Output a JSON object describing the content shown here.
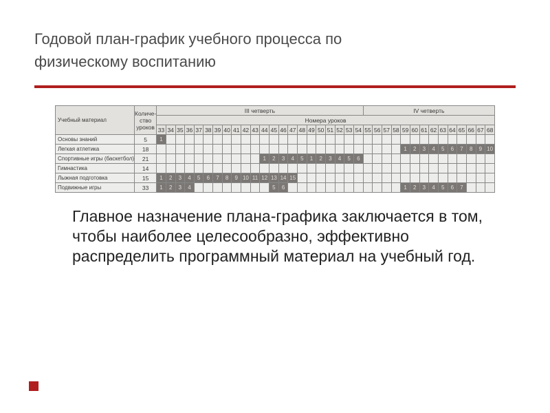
{
  "title_line1": "Годовой план-график учебного процесса по",
  "title_line2": "физическому воспитанию",
  "body_text": "Главное назначение плана-графика заключается в том, чтобы наиболее целесообразно, эффективно распределить программный материал на учебный год.",
  "table": {
    "header": {
      "col1": "Учебный материал",
      "col2": "Количе-\nство\nуроков",
      "q3": "III четверть",
      "q4": "IV четверть",
      "lesson_numbers_label": "Номера уроков",
      "lessons": [
        33,
        34,
        35,
        36,
        37,
        38,
        39,
        40,
        41,
        42,
        43,
        44,
        45,
        46,
        47,
        48,
        49,
        50,
        51,
        52,
        53,
        54,
        55,
        56,
        57,
        58,
        59,
        60,
        61,
        62,
        63,
        64,
        65,
        66,
        67,
        68
      ]
    },
    "rows": [
      {
        "label": "Основы знаний",
        "count": 5,
        "cells": [
          "1",
          "",
          "",
          "",
          "",
          "",
          "",
          "",
          "",
          "",
          "",
          "",
          "",
          "",
          "",
          "",
          "",
          "",
          "",
          "",
          "",
          "",
          "",
          "",
          "",
          "",
          "",
          "",
          "",
          "",
          "",
          "",
          "",
          "",
          "",
          ""
        ]
      },
      {
        "label": "Легкая атлетика",
        "count": 18,
        "cells": [
          "",
          "",
          "",
          "",
          "",
          "",
          "",
          "",
          "",
          "",
          "",
          "",
          "",
          "",
          "",
          "",
          "",
          "",
          "",
          "",
          "",
          "",
          "",
          "",
          "",
          "",
          "1",
          "2",
          "3",
          "4",
          "5",
          "6",
          "7",
          "8",
          "9",
          "10"
        ]
      },
      {
        "label": "Спортивные игры (баскетбол)",
        "count": 21,
        "cells": [
          "",
          "",
          "",
          "",
          "",
          "",
          "",
          "",
          "",
          "",
          "",
          "1",
          "2",
          "3",
          "4",
          "5",
          "1",
          "2",
          "3",
          "4",
          "5",
          "6",
          "",
          "",
          "",
          "",
          "",
          "",
          "",
          "",
          "",
          "",
          "",
          "",
          "",
          ""
        ]
      },
      {
        "label": "Гимнастика",
        "count": 14,
        "cells": [
          "",
          "",
          "",
          "",
          "",
          "",
          "",
          "",
          "",
          "",
          "",
          "",
          "",
          "",
          "",
          "",
          "",
          "",
          "",
          "",
          "",
          "",
          "",
          "",
          "",
          "",
          "",
          "",
          "",
          "",
          "",
          "",
          "",
          "",
          "",
          ""
        ]
      },
      {
        "label": "Лыжная подготовка",
        "count": 15,
        "cells": [
          "1",
          "2",
          "3",
          "4",
          "5",
          "6",
          "7",
          "8",
          "9",
          "10",
          "11",
          "12",
          "13",
          "14",
          "15",
          "",
          "",
          "",
          "",
          "",
          "",
          "",
          "",
          "",
          "",
          "",
          "",
          "",
          "",
          "",
          "",
          "",
          "",
          "",
          "",
          ""
        ]
      },
      {
        "label": "Подвижные игры",
        "count": 33,
        "cells": [
          "1",
          "2",
          "3",
          "4",
          "",
          "",
          "",
          "",
          "",
          "",
          "",
          "",
          "5",
          "6",
          "",
          "",
          "",
          "",
          "",
          "",
          "",
          "",
          "",
          "",
          "",
          "",
          "1",
          "2",
          "3",
          "4",
          "5",
          "6",
          "7",
          "",
          "",
          ""
        ]
      }
    ]
  },
  "colors": {
    "accent": "#b01e1e",
    "filled_bg": "#7a7672",
    "filled_fg": "#e8e5e0",
    "header_bg": "#ece9e4",
    "table_bg": "#f7f6f4",
    "border": "#888"
  }
}
